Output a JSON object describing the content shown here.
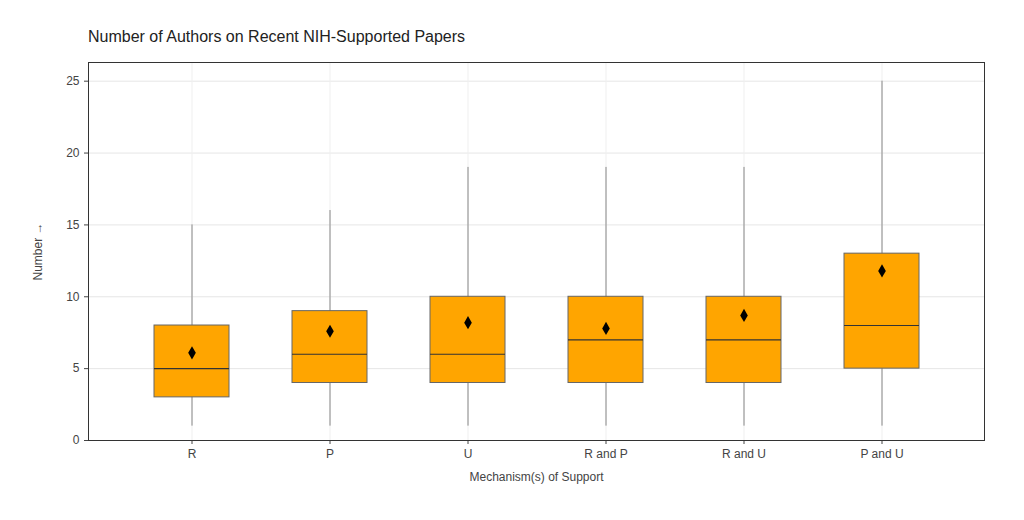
{
  "chart_data": {
    "type": "box",
    "title": "Number of Authors on Recent NIH-Supported Papers",
    "x_label": "Mechanism(s) of Support",
    "y_label": "Number",
    "categories": [
      "R",
      "P",
      "U",
      "R and P",
      "R and U",
      "P and U"
    ],
    "whisker_low": [
      1,
      1,
      1,
      1,
      1,
      1
    ],
    "q1": [
      3,
      4,
      4,
      4,
      4,
      5
    ],
    "median": [
      5,
      6,
      6,
      7,
      7,
      8
    ],
    "q3": [
      8,
      9,
      10,
      10,
      10,
      13
    ],
    "whisker_high": [
      15,
      16,
      19,
      19,
      19,
      25
    ],
    "mean": [
      6.1,
      7.6,
      8.2,
      7.8,
      8.7,
      11.8
    ],
    "color": "#FFA500",
    "marker": "diamond",
    "ylim": [
      0,
      26.3
    ],
    "yticks": [
      0,
      5,
      10,
      15,
      20,
      25
    ],
    "grid": true
  }
}
